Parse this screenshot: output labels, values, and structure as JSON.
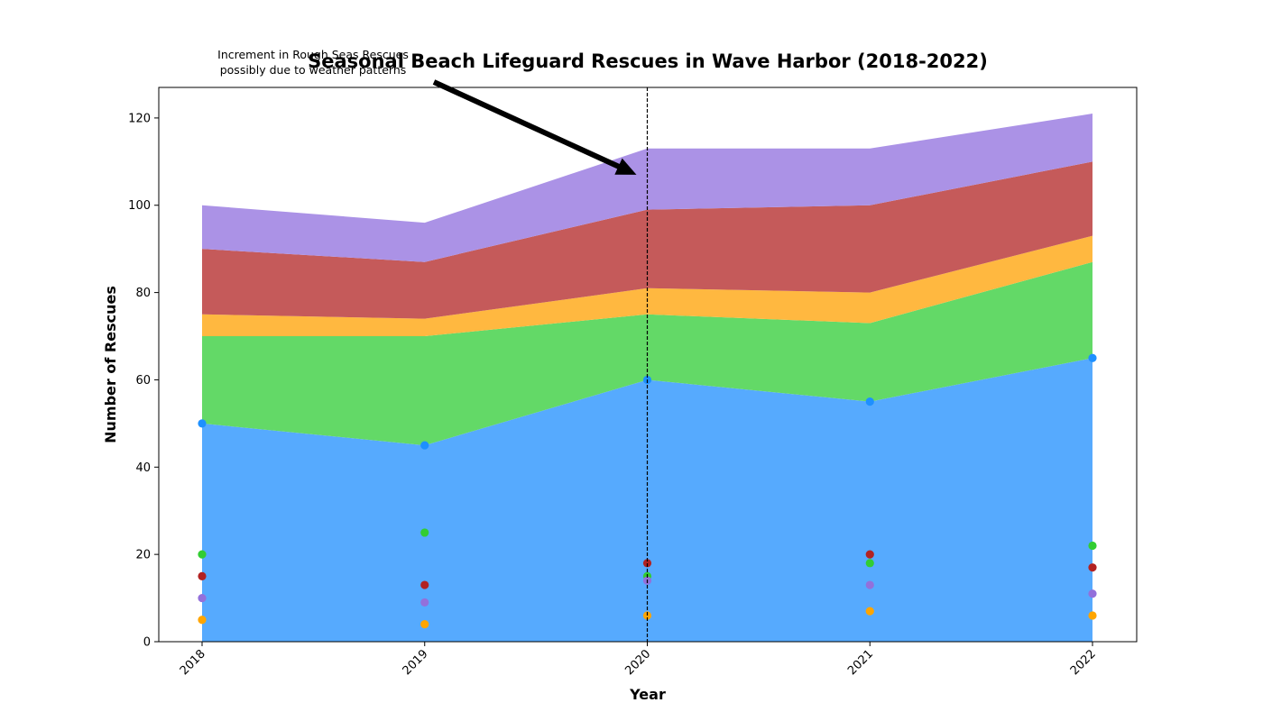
{
  "chart_data": {
    "type": "area",
    "stacked": true,
    "title": "Seasonal Beach Lifeguard Rescues in Wave Harbor (2018-2022)",
    "xlabel": "Year",
    "ylabel": "Number of Rescues",
    "categories": [
      "2018",
      "2019",
      "2020",
      "2021",
      "2022"
    ],
    "ylim": [
      0,
      127
    ],
    "yticks": [
      0,
      20,
      40,
      60,
      80,
      100,
      120
    ],
    "grid": false,
    "series": [
      {
        "values": [
          50,
          45,
          60,
          55,
          65
        ],
        "fill_color": "#56aafe",
        "marker_color": "#1e90ff"
      },
      {
        "values": [
          20,
          25,
          15,
          18,
          22
        ],
        "fill_color": "#63d967",
        "marker_color": "#32cd32"
      },
      {
        "values": [
          5,
          4,
          6,
          7,
          6
        ],
        "fill_color": "#ffb840",
        "marker_color": "#ffa500"
      },
      {
        "values": [
          15,
          13,
          18,
          20,
          17
        ],
        "fill_color": "#c55a5a",
        "marker_color": "#b22222"
      },
      {
        "values": [
          10,
          9,
          14,
          13,
          11
        ],
        "fill_color": "#ab92e6",
        "marker_color": "#9370db"
      }
    ],
    "reference_line": {
      "x": "2020",
      "style": "dashed",
      "color": "#000000"
    },
    "annotation": {
      "lines": [
        "Increment in Rough Seas Rescues",
        "possibly due to weather patterns"
      ],
      "points_to": {
        "x": "2020",
        "y": 107
      }
    }
  }
}
